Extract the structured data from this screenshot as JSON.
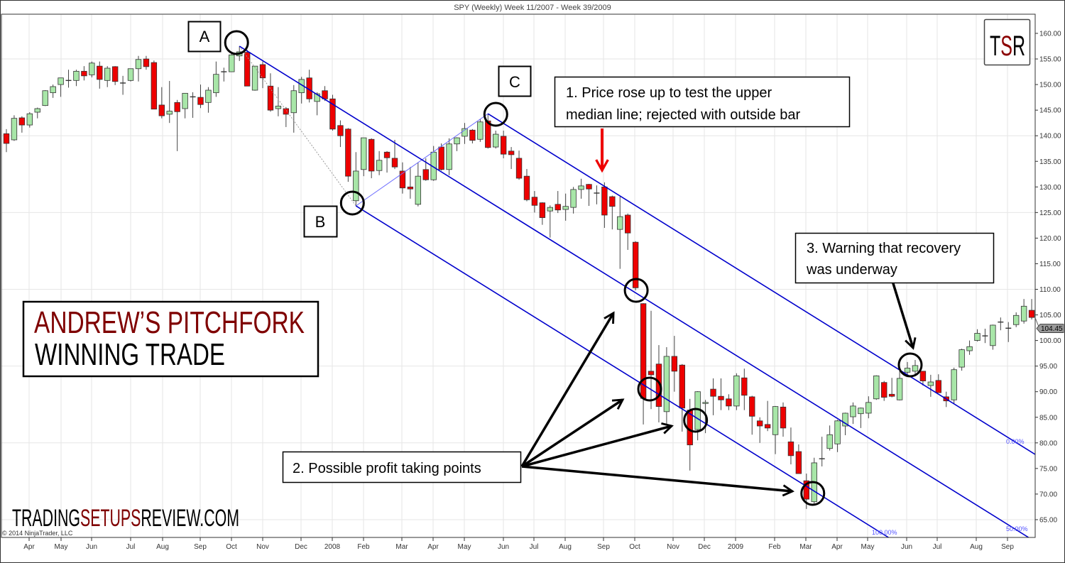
{
  "chart_data": {
    "type": "candlestick",
    "title": "SPY (Weekly)  Week 11/2007 - Week 39/2009",
    "interval": "weekly",
    "start_week": "2007-03-12",
    "ylim": [
      62,
      163
    ],
    "y_ticks": [
      160,
      155,
      150,
      145,
      140,
      135,
      130,
      125,
      120,
      115,
      110,
      105,
      100,
      95,
      90,
      85,
      80,
      75,
      70,
      65
    ],
    "y_gridlines": [
      155,
      140,
      125,
      110,
      95,
      80,
      65
    ],
    "x_tick_labels": [
      "Apr",
      "May",
      "Jun",
      "Jul",
      "Aug",
      "Sep",
      "Oct",
      "Nov",
      "Dec",
      "2008",
      "Feb",
      "Mar",
      "Apr",
      "May",
      "Jun",
      "Jul",
      "Aug",
      "Sep",
      "Oct",
      "Nov",
      "Dec",
      "2009",
      "Feb",
      "Mar",
      "Apr",
      "May",
      "Jun",
      "Jul",
      "Aug",
      "Sep"
    ],
    "grid": true,
    "last_price": "104.45",
    "colors": {
      "up": "#a8e6a8",
      "down": "#ee0000",
      "pitchfork": "#0000cc",
      "title_red": "#7f0000"
    },
    "ohlc_fields": [
      "open",
      "high",
      "low",
      "close"
    ],
    "candles": [
      [
        140.4,
        141.3,
        136.8,
        138.5
      ],
      [
        139.2,
        144,
        139,
        143.4
      ],
      [
        143.5,
        143.8,
        140.6,
        142.1
      ],
      [
        142.1,
        144.6,
        141.6,
        144.3
      ],
      [
        144.6,
        145.5,
        143.4,
        145.3
      ],
      [
        145.9,
        148.9,
        145.8,
        148.8
      ],
      [
        148.4,
        150,
        147.4,
        149.6
      ],
      [
        150,
        151.3,
        147.6,
        151.3
      ],
      [
        150.8,
        152.9,
        149.4,
        150.8
      ],
      [
        150.8,
        152.9,
        149.7,
        152.6
      ],
      [
        152.6,
        153.6,
        150.8,
        151.7
      ],
      [
        151.9,
        154.5,
        151.4,
        154.2
      ],
      [
        153.6,
        154.5,
        149.2,
        151
      ],
      [
        150.8,
        153.6,
        149.5,
        153.2
      ],
      [
        153.5,
        153.6,
        149.9,
        150.6
      ],
      [
        150.3,
        151.7,
        148,
        150.3
      ],
      [
        150.8,
        153.1,
        150.6,
        153.1
      ],
      [
        153.1,
        155.6,
        150.6,
        154.9
      ],
      [
        155,
        155.6,
        152.9,
        153.5
      ],
      [
        154.3,
        154.7,
        145.2,
        145.2
      ],
      [
        146,
        149.5,
        143.4,
        143.9
      ],
      [
        144.2,
        150.7,
        142.5,
        144.8
      ],
      [
        146.5,
        147,
        137,
        144.7
      ],
      [
        145.3,
        148.3,
        143.4,
        148.3
      ],
      [
        147.6,
        148.5,
        143.5,
        147.6
      ],
      [
        147.5,
        150,
        145.4,
        146.1
      ],
      [
        146.5,
        149.5,
        144.5,
        148.9
      ],
      [
        148.4,
        154.5,
        147.6,
        152
      ],
      [
        152.5,
        153.3,
        150.6,
        152.5
      ],
      [
        152.5,
        156,
        152.5,
        155.8
      ],
      [
        155.6,
        157.5,
        154.6,
        156.4
      ],
      [
        156.3,
        156.8,
        149.7,
        149.7
      ],
      [
        148.9,
        153.6,
        148.8,
        153.6
      ],
      [
        153.9,
        154.5,
        149.3,
        151.3
      ],
      [
        149.7,
        152.2,
        144.7,
        145
      ],
      [
        145.3,
        149.5,
        143.8,
        145.8
      ],
      [
        145.3,
        145.6,
        141.7,
        144.2
      ],
      [
        144.5,
        149.9,
        140.6,
        148.8
      ],
      [
        148.4,
        151.5,
        146.3,
        151
      ],
      [
        151.3,
        152.9,
        146.5,
        147.2
      ],
      [
        146.7,
        148.5,
        144,
        148.2
      ],
      [
        148.8,
        149.7,
        146.8,
        147.2
      ],
      [
        147.2,
        148,
        141,
        141.3
      ],
      [
        142,
        143,
        137.8,
        140
      ],
      [
        141.3,
        141.5,
        131,
        132.1
      ],
      [
        127.3,
        136.8,
        126.3,
        133.1
      ],
      [
        133.4,
        139.6,
        132.1,
        139.6
      ],
      [
        139.3,
        139.5,
        131.7,
        133.1
      ],
      [
        133.2,
        137,
        132.3,
        135.2
      ],
      [
        136.8,
        137,
        132.8,
        135.7
      ],
      [
        135.6,
        139.2,
        133.5,
        133.9
      ],
      [
        133.1,
        134.8,
        128.7,
        129.8
      ],
      [
        130,
        133.9,
        127.7,
        129.6
      ],
      [
        126.6,
        134.8,
        126.2,
        132.1
      ],
      [
        133.4,
        135.6,
        131.2,
        131.4
      ],
      [
        131.4,
        138,
        131.2,
        136.8
      ],
      [
        137.8,
        138.5,
        133.2,
        133.4
      ],
      [
        133.4,
        139.5,
        132.3,
        138.4
      ],
      [
        138.4,
        139.7,
        137,
        139.6
      ],
      [
        139.9,
        142.5,
        138.4,
        141.4
      ],
      [
        141.1,
        141.3,
        138.5,
        139.1
      ],
      [
        139.3,
        143.2,
        138.8,
        142.7
      ],
      [
        142.9,
        144.3,
        137.5,
        137.7
      ],
      [
        137.8,
        141,
        137.5,
        140.3
      ],
      [
        139.9,
        141,
        135.6,
        136.4
      ],
      [
        137,
        137.8,
        133.5,
        136.3
      ],
      [
        135.6,
        137.1,
        131.4,
        131.7
      ],
      [
        132.1,
        133.5,
        127.2,
        127.5
      ],
      [
        128,
        129.2,
        125,
        126.4
      ],
      [
        126.9,
        127,
        122.6,
        124
      ],
      [
        125.3,
        126.4,
        120.1,
        126
      ],
      [
        126.6,
        129.2,
        124.9,
        125.5
      ],
      [
        125.6,
        128.7,
        123.4,
        126.2
      ],
      [
        126,
        130,
        124.8,
        129.5
      ],
      [
        129.5,
        131.6,
        127.7,
        130.2
      ],
      [
        130.5,
        130.6,
        126.3,
        129.6
      ],
      [
        128.8,
        130.3,
        126.6,
        128.8
      ],
      [
        130,
        130.9,
        122,
        124.5
      ],
      [
        128.1,
        128.3,
        121.7,
        126.2
      ],
      [
        121.7,
        128.1,
        114,
        124.2
      ],
      [
        124.5,
        124.8,
        117.7,
        121
      ],
      [
        119.2,
        119.4,
        109.8,
        110.3
      ],
      [
        107.2,
        107.3,
        83.6,
        88.7
      ],
      [
        94,
        105.8,
        86.6,
        93.3
      ],
      [
        95.4,
        99.1,
        84,
        87.1
      ],
      [
        86.1,
        98.7,
        83.7,
        96.9
      ],
      [
        96.9,
        100.9,
        90,
        94
      ],
      [
        95.2,
        95.4,
        82.2,
        86.8
      ],
      [
        86.4,
        88.6,
        74.6,
        79.6
      ],
      [
        82.6,
        90.1,
        80.5,
        90
      ],
      [
        87.7,
        88.4,
        81.9,
        87.9
      ],
      [
        90.5,
        92.6,
        85.4,
        89.1
      ],
      [
        89.1,
        92.6,
        86.4,
        88.4
      ],
      [
        88.6,
        89.5,
        86.4,
        87.2
      ],
      [
        87.2,
        93.6,
        86.4,
        93.1
      ],
      [
        92.7,
        94.5,
        86.4,
        89.3
      ],
      [
        89,
        89.2,
        81.6,
        85.2
      ],
      [
        84.3,
        85,
        80,
        83.3
      ],
      [
        83.6,
        88.2,
        82.3,
        82.9
      ],
      [
        81.6,
        87.2,
        77.8,
        87.1
      ],
      [
        87,
        87.9,
        81.2,
        82.9
      ],
      [
        80.2,
        83,
        75.8,
        77.5
      ],
      [
        78.3,
        79.7,
        74,
        74
      ],
      [
        72.6,
        74,
        67.1,
        69
      ],
      [
        68.5,
        77.1,
        67.8,
        76.1
      ],
      [
        76.9,
        81.2,
        75.4,
        76.9
      ],
      [
        78.9,
        83.4,
        78.5,
        81.6
      ],
      [
        79.8,
        84.5,
        78.2,
        84.3
      ],
      [
        83.3,
        85.9,
        81.5,
        85.8
      ],
      [
        85.1,
        87.9,
        83.7,
        87.2
      ],
      [
        85.7,
        86.9,
        82.9,
        86.8
      ],
      [
        85.8,
        89.1,
        84.8,
        87.9
      ],
      [
        88.6,
        93.2,
        88.4,
        93.1
      ],
      [
        91.8,
        92.1,
        88.2,
        88.9
      ],
      [
        89.5,
        92.7,
        88.9,
        89.1
      ],
      [
        88.4,
        94,
        88.3,
        92.6
      ],
      [
        93.8,
        95.8,
        93.4,
        94.6
      ],
      [
        94,
        96.2,
        93.3,
        95.1
      ],
      [
        94,
        94,
        91.2,
        92.1
      ],
      [
        91.2,
        93.3,
        89,
        91.9
      ],
      [
        92.2,
        93.4,
        89.8,
        89.8
      ],
      [
        89,
        90,
        87,
        88.2
      ],
      [
        88.4,
        94.7,
        87.7,
        94.3
      ],
      [
        94.8,
        98.4,
        94.1,
        98.2
      ],
      [
        98,
        100,
        97.2,
        98.8
      ],
      [
        100,
        102.2,
        99.8,
        101.4
      ],
      [
        100.9,
        102.3,
        99.5,
        100.9
      ],
      [
        99,
        103.1,
        98.2,
        103
      ],
      [
        103.6,
        104.5,
        102,
        103.6
      ],
      [
        102.4,
        103.6,
        99.7,
        102.4
      ],
      [
        103.1,
        105.5,
        102.6,
        104.9
      ],
      [
        103.8,
        108.1,
        103.3,
        106.7
      ],
      [
        105.9,
        108.1,
        104.1,
        104.5
      ]
    ],
    "pitchfork": {
      "name": "Andrew's Pitchfork",
      "A": {
        "week": "2007-10-08",
        "price": 157.5
      },
      "B": {
        "week": "2008-01-21",
        "price": 126.3
      },
      "C": {
        "week": "2008-05-19",
        "price": 144.3
      },
      "level_labels": {
        "upper": "0.00%",
        "median": "50.00%",
        "lower": "100.00%"
      }
    },
    "highlight_weeks": [
      "2007-10-08",
      "2008-01-21",
      "2008-05-19",
      "2008-10-06",
      "2008-10-13",
      "2008-11-24",
      "2009-03-09",
      "2009-06-08"
    ]
  },
  "labels": {
    "A": "A",
    "B": "B",
    "C": "C"
  },
  "annotations": {
    "note1": [
      "1. Price rose up to test the upper",
      "median line; rejected with outside bar"
    ],
    "note2": "2. Possible profit taking points",
    "note3": [
      "3. Warning that recovery",
      "was underway"
    ]
  },
  "title_box": {
    "line1": "ANDREW’S PITCHFORK",
    "line2": "WINNING TRADE"
  },
  "logo": {
    "text_t": "T",
    "text_s": "S",
    "text_r": "R"
  },
  "watermark": {
    "part1": "TRADING",
    "part2": "SETUPS",
    "part3": "REVIEW.COM"
  },
  "copyright": "© 2014 NinjaTrader, LLC"
}
